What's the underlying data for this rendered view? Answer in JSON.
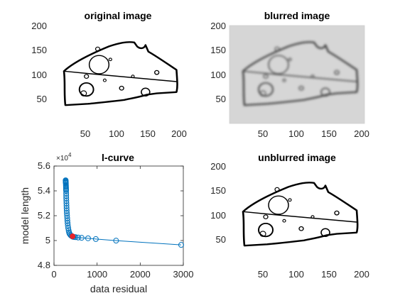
{
  "chart_data": [
    {
      "type": "image",
      "title": "original image",
      "xticks": [
        "50",
        "100",
        "150",
        "200"
      ],
      "yticks": [
        "200",
        "150",
        "100",
        "50"
      ],
      "background": "#ffffff",
      "stroke_color": "#000000"
    },
    {
      "type": "image",
      "title": "blurred image",
      "xticks": [
        "50",
        "100",
        "150",
        "200"
      ],
      "yticks": [
        "200",
        "150",
        "100",
        "50"
      ],
      "background": "#d6d6d6",
      "stroke_color": "#444444"
    },
    {
      "type": "scatter",
      "title": "l-curve",
      "xlabel": "data residual",
      "ylabel": "model length",
      "xlim": [
        0,
        3000
      ],
      "ylim": [
        4.8,
        5.6
      ],
      "y_exponent_label": "×10",
      "y_exponent": "4",
      "xticks": [
        "0",
        "1000",
        "2000",
        "3000"
      ],
      "yticks": [
        "5.6",
        "5.4",
        "5.2",
        "5",
        "4.8"
      ],
      "marker_color": "#0072bd",
      "highlight_color": "#e8232a",
      "series": [
        {
          "x": [
            2950,
            1440,
            970,
            790,
            640,
            560,
            500,
            470,
            440,
            420,
            400,
            380,
            360,
            350,
            340,
            330,
            322,
            316,
            310,
            306,
            302,
            298,
            295,
            292,
            290,
            288,
            286,
            284,
            283,
            282,
            281,
            280,
            279,
            278,
            277,
            276,
            275,
            274,
            273,
            272,
            271,
            270
          ],
          "y": [
            4.965,
            4.999,
            5.012,
            5.018,
            5.022,
            5.024,
            5.027,
            5.028,
            5.03,
            5.034,
            5.038,
            5.045,
            5.055,
            5.065,
            5.08,
            5.1,
            5.12,
            5.14,
            5.16,
            5.18,
            5.2,
            5.22,
            5.24,
            5.26,
            5.28,
            5.3,
            5.32,
            5.34,
            5.36,
            5.38,
            5.4,
            5.41,
            5.42,
            5.43,
            5.44,
            5.45,
            5.46,
            5.465,
            5.47,
            5.475,
            5.48,
            5.485
          ]
        }
      ],
      "highlight": {
        "x": 430,
        "y": 5.034
      }
    },
    {
      "type": "image",
      "title": "unblurred image",
      "xticks": [
        "50",
        "100",
        "150",
        "200"
      ],
      "yticks": [
        "200",
        "150",
        "100",
        "50"
      ],
      "background": "#ffffff",
      "stroke_color": "#000000"
    }
  ]
}
